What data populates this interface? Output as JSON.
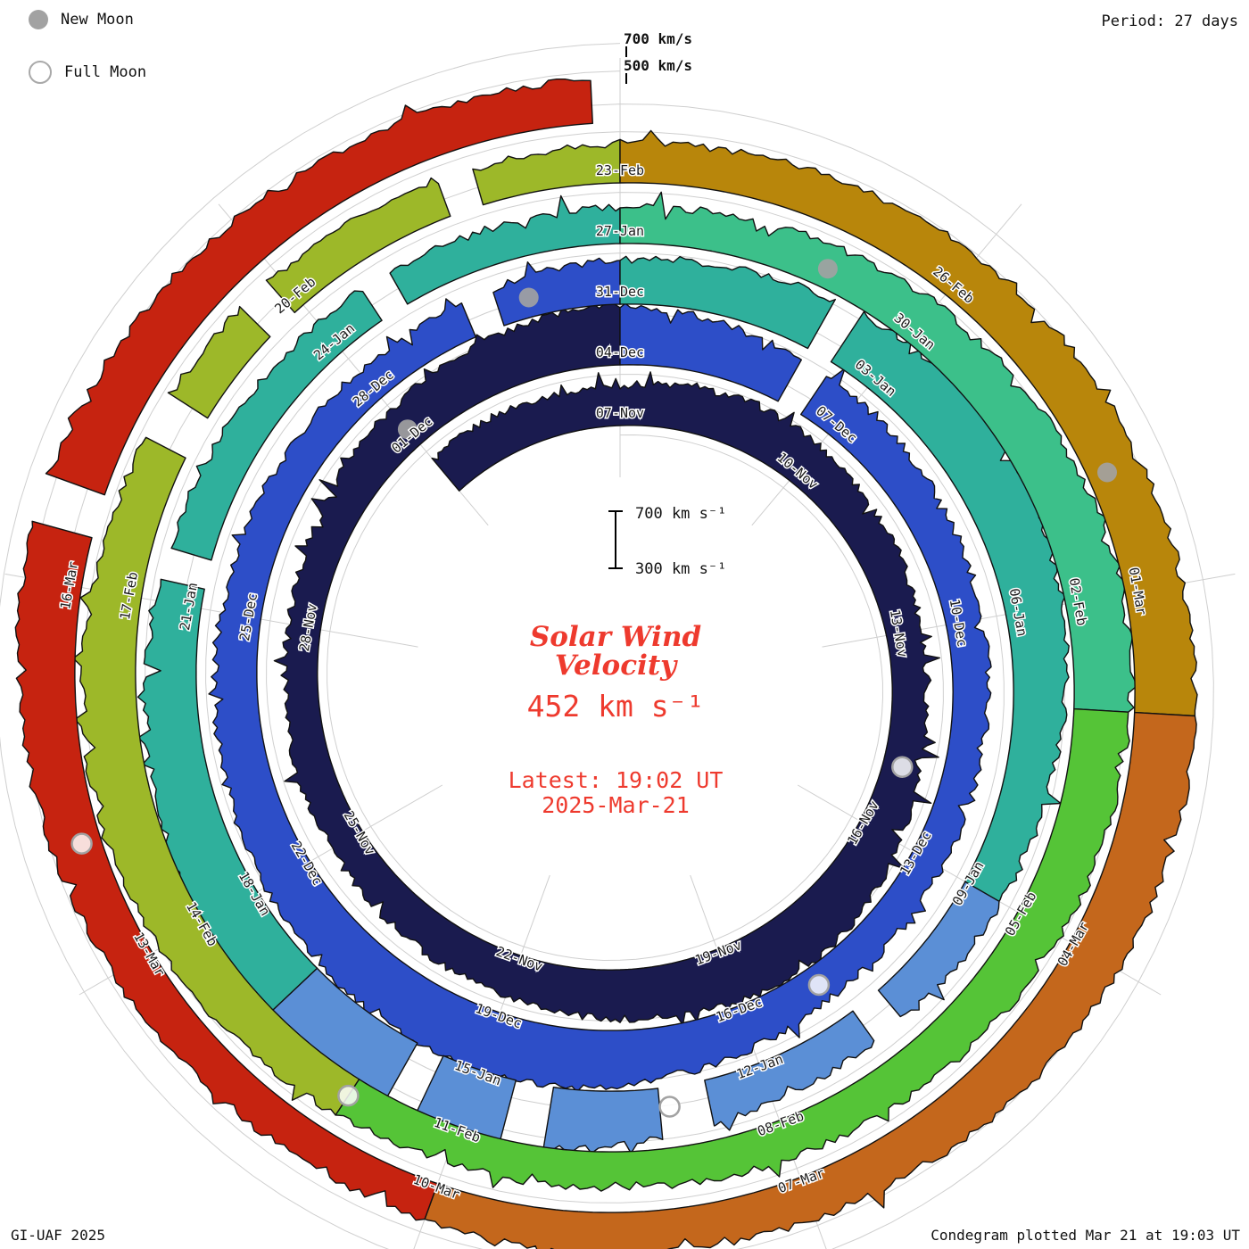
{
  "header": {
    "period_label": "Period: 27 days"
  },
  "legend": {
    "new_moon": "New Moon",
    "full_moon": "Full Moon"
  },
  "top_scale": {
    "outer": "700 km/s",
    "inner": "500 km/s"
  },
  "center": {
    "title_line1": "Solar Wind",
    "title_line2": "Velocity",
    "value": "452 km s⁻¹",
    "latest_line1": "Latest: 19:02 UT",
    "latest_line2": "2025-Mar-21",
    "scalebar_top": "700 km s⁻¹",
    "scalebar_bottom": "300 km s⁻¹"
  },
  "footer": {
    "left": "GI-UAF 2025",
    "right": "Condegram plotted Mar 21 at 19:03 UT"
  },
  "chart_data": {
    "type": "spiral-area (condegram)",
    "title": "Solar Wind Velocity",
    "period_days": 27,
    "start_date": "2024-11-04",
    "end_date": "2025-03-21",
    "latest_time_ut": "19:02",
    "current_velocity_kms": 452,
    "velocity_units": "km/s",
    "radial_axis": {
      "baseline_kms": 130,
      "gridlines_kms": [
        500,
        700
      ],
      "scalebar_kms": [
        300,
        700
      ]
    },
    "date_labels": [
      "07-Nov",
      "10-Nov",
      "13-Nov",
      "16-Nov",
      "19-Nov",
      "22-Nov",
      "25-Nov",
      "28-Nov",
      "01-Dec",
      "04-Dec",
      "07-Dec",
      "10-Dec",
      "13-Dec",
      "16-Dec",
      "19-Dec",
      "22-Dec",
      "25-Dec",
      "28-Dec",
      "31-Dec",
      "03-Jan",
      "06-Jan",
      "09-Jan",
      "12-Jan",
      "15-Jan",
      "18-Jan",
      "21-Jan",
      "24-Jan",
      "27-Jan",
      "30-Jan",
      "02-Feb",
      "05-Feb",
      "08-Feb",
      "11-Feb",
      "14-Feb",
      "17-Feb",
      "20-Feb",
      "23-Feb",
      "26-Feb",
      "01-Mar",
      "04-Mar",
      "07-Mar",
      "10-Mar",
      "13-Mar",
      "16-Mar"
    ],
    "daily_velocity_kms": [
      420,
      435,
      425,
      420,
      450,
      480,
      460,
      430,
      410,
      390,
      380,
      400,
      450,
      520,
      560,
      540,
      500,
      470,
      440,
      420,
      400,
      390,
      380,
      370,
      360,
      380,
      420,
      460,
      500,
      540,
      560,
      520,
      480,
      450,
      430,
      410,
      400,
      390,
      380,
      370,
      380,
      400,
      450,
      500,
      550,
      580,
      560,
      530,
      500,
      470,
      440,
      420,
      400,
      390,
      380,
      390,
      420,
      450,
      480,
      520,
      560,
      600,
      580,
      540,
      500,
      460,
      430,
      410,
      400,
      420,
      480,
      560,
      640,
      680,
      650,
      600,
      550,
      500,
      460,
      430,
      410,
      400,
      390,
      380,
      390,
      410,
      440,
      470,
      500,
      530,
      560,
      540,
      510,
      480,
      450,
      430,
      410,
      400,
      390,
      400,
      430,
      470,
      510,
      540,
      520,
      490,
      460,
      440,
      420,
      410,
      400,
      410,
      430,
      460,
      490,
      510,
      530,
      550,
      570,
      560,
      530,
      500,
      470,
      450,
      430,
      420,
      410,
      400,
      420,
      450,
      490,
      530,
      560,
      540,
      510,
      480,
      460,
      452
    ],
    "series_end_day": 137.79,
    "gaps_days_from_start": [
      [
        32.2,
        32.55
      ],
      [
        55.3,
        55.65
      ],
      [
        59.2,
        59.5
      ],
      [
        67.5,
        67.85
      ],
      [
        69.6,
        70.1
      ],
      [
        71.2,
        71.6
      ],
      [
        72.4,
        72.7
      ],
      [
        78.2,
        78.5
      ],
      [
        81.5,
        81.8
      ],
      [
        106.3,
        106.7
      ],
      [
        107.6,
        107.9
      ],
      [
        109.5,
        109.8
      ],
      [
        132.4,
        132.75
      ]
    ],
    "moons": {
      "new": [
        "2024-12-01",
        "2024-12-30",
        "2025-01-29",
        "2025-02-28"
      ],
      "full": [
        "2024-11-15",
        "2024-12-15",
        "2025-01-13",
        "2025-02-12",
        "2025-03-14"
      ]
    },
    "color_segments": [
      {
        "t0": 0,
        "t1": 30,
        "color": "#1a1b4f"
      },
      {
        "t0": 30,
        "t1": 57,
        "color": "#2d4ec8"
      },
      {
        "t0": 57,
        "t1": 66,
        "color": "#2fb09c"
      },
      {
        "t0": 66,
        "t1": 74,
        "color": "#5b8fd6"
      },
      {
        "t0": 74,
        "t1": 84,
        "color": "#2fb09c"
      },
      {
        "t0": 84,
        "t1": 91,
        "color": "#3cc08a"
      },
      {
        "t0": 91,
        "t1": 100,
        "color": "#55c437"
      },
      {
        "t0": 100,
        "t1": 111,
        "color": "#9db829"
      },
      {
        "t0": 111,
        "t1": 118,
        "color": "#b8860b"
      },
      {
        "t0": 118,
        "t1": 126,
        "color": "#c4671c"
      },
      {
        "t0": 126,
        "t1": 137.79,
        "color": "#c62310"
      }
    ],
    "grid": {
      "spokes_every_days": 3,
      "spokes_per_rotation": 9
    }
  }
}
